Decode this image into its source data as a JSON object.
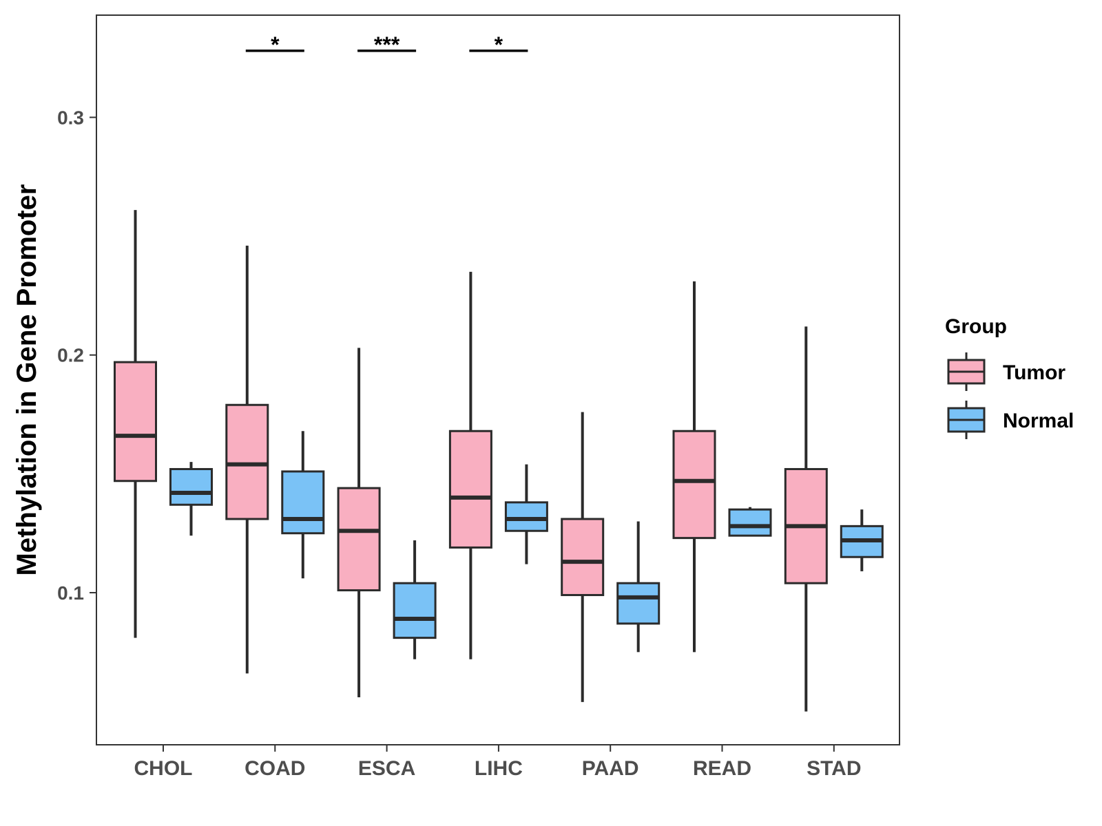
{
  "chart_data": {
    "type": "boxplot",
    "title": "",
    "xlabel": "",
    "ylabel": "Methylation in Gene Promoter",
    "ylim": [
      0.036,
      0.343
    ],
    "yticks": [
      0.1,
      0.2,
      0.3
    ],
    "ytick_labels": [
      "0.1",
      "0.2",
      "0.3"
    ],
    "categories": [
      "CHOL",
      "COAD",
      "ESCA",
      "LIHC",
      "PAAD",
      "READ",
      "STAD"
    ],
    "series": [
      {
        "name": "Tumor",
        "color": "#F9AFC1",
        "boxes": [
          {
            "min": 0.081,
            "q1": 0.147,
            "median": 0.166,
            "q3": 0.197,
            "max": 0.261
          },
          {
            "min": 0.066,
            "q1": 0.131,
            "median": 0.154,
            "q3": 0.179,
            "max": 0.246
          },
          {
            "min": 0.056,
            "q1": 0.101,
            "median": 0.126,
            "q3": 0.144,
            "max": 0.203
          },
          {
            "min": 0.072,
            "q1": 0.119,
            "median": 0.14,
            "q3": 0.168,
            "max": 0.235
          },
          {
            "min": 0.054,
            "q1": 0.099,
            "median": 0.113,
            "q3": 0.131,
            "max": 0.176
          },
          {
            "min": 0.075,
            "q1": 0.123,
            "median": 0.147,
            "q3": 0.168,
            "max": 0.231
          },
          {
            "min": 0.05,
            "q1": 0.104,
            "median": 0.128,
            "q3": 0.152,
            "max": 0.212
          }
        ]
      },
      {
        "name": "Normal",
        "color": "#7AC2F6",
        "boxes": [
          {
            "min": 0.124,
            "q1": 0.137,
            "median": 0.142,
            "q3": 0.152,
            "max": 0.155
          },
          {
            "min": 0.106,
            "q1": 0.125,
            "median": 0.131,
            "q3": 0.151,
            "max": 0.168
          },
          {
            "min": 0.072,
            "q1": 0.081,
            "median": 0.089,
            "q3": 0.104,
            "max": 0.122
          },
          {
            "min": 0.112,
            "q1": 0.126,
            "median": 0.131,
            "q3": 0.138,
            "max": 0.154
          },
          {
            "min": 0.075,
            "q1": 0.087,
            "median": 0.098,
            "q3": 0.104,
            "max": 0.13
          },
          {
            "min": 0.124,
            "q1": 0.124,
            "median": 0.128,
            "q3": 0.135,
            "max": 0.136
          },
          {
            "min": 0.109,
            "q1": 0.115,
            "median": 0.122,
            "q3": 0.128,
            "max": 0.135
          }
        ]
      }
    ],
    "significance": [
      {
        "category": "COAD",
        "label": "*",
        "y": 0.328
      },
      {
        "category": "ESCA",
        "label": "***",
        "y": 0.328
      },
      {
        "category": "LIHC",
        "label": "*",
        "y": 0.328
      }
    ],
    "legend": {
      "title": "Group",
      "position": "right",
      "items": [
        "Tumor",
        "Normal"
      ]
    },
    "grid": false
  }
}
